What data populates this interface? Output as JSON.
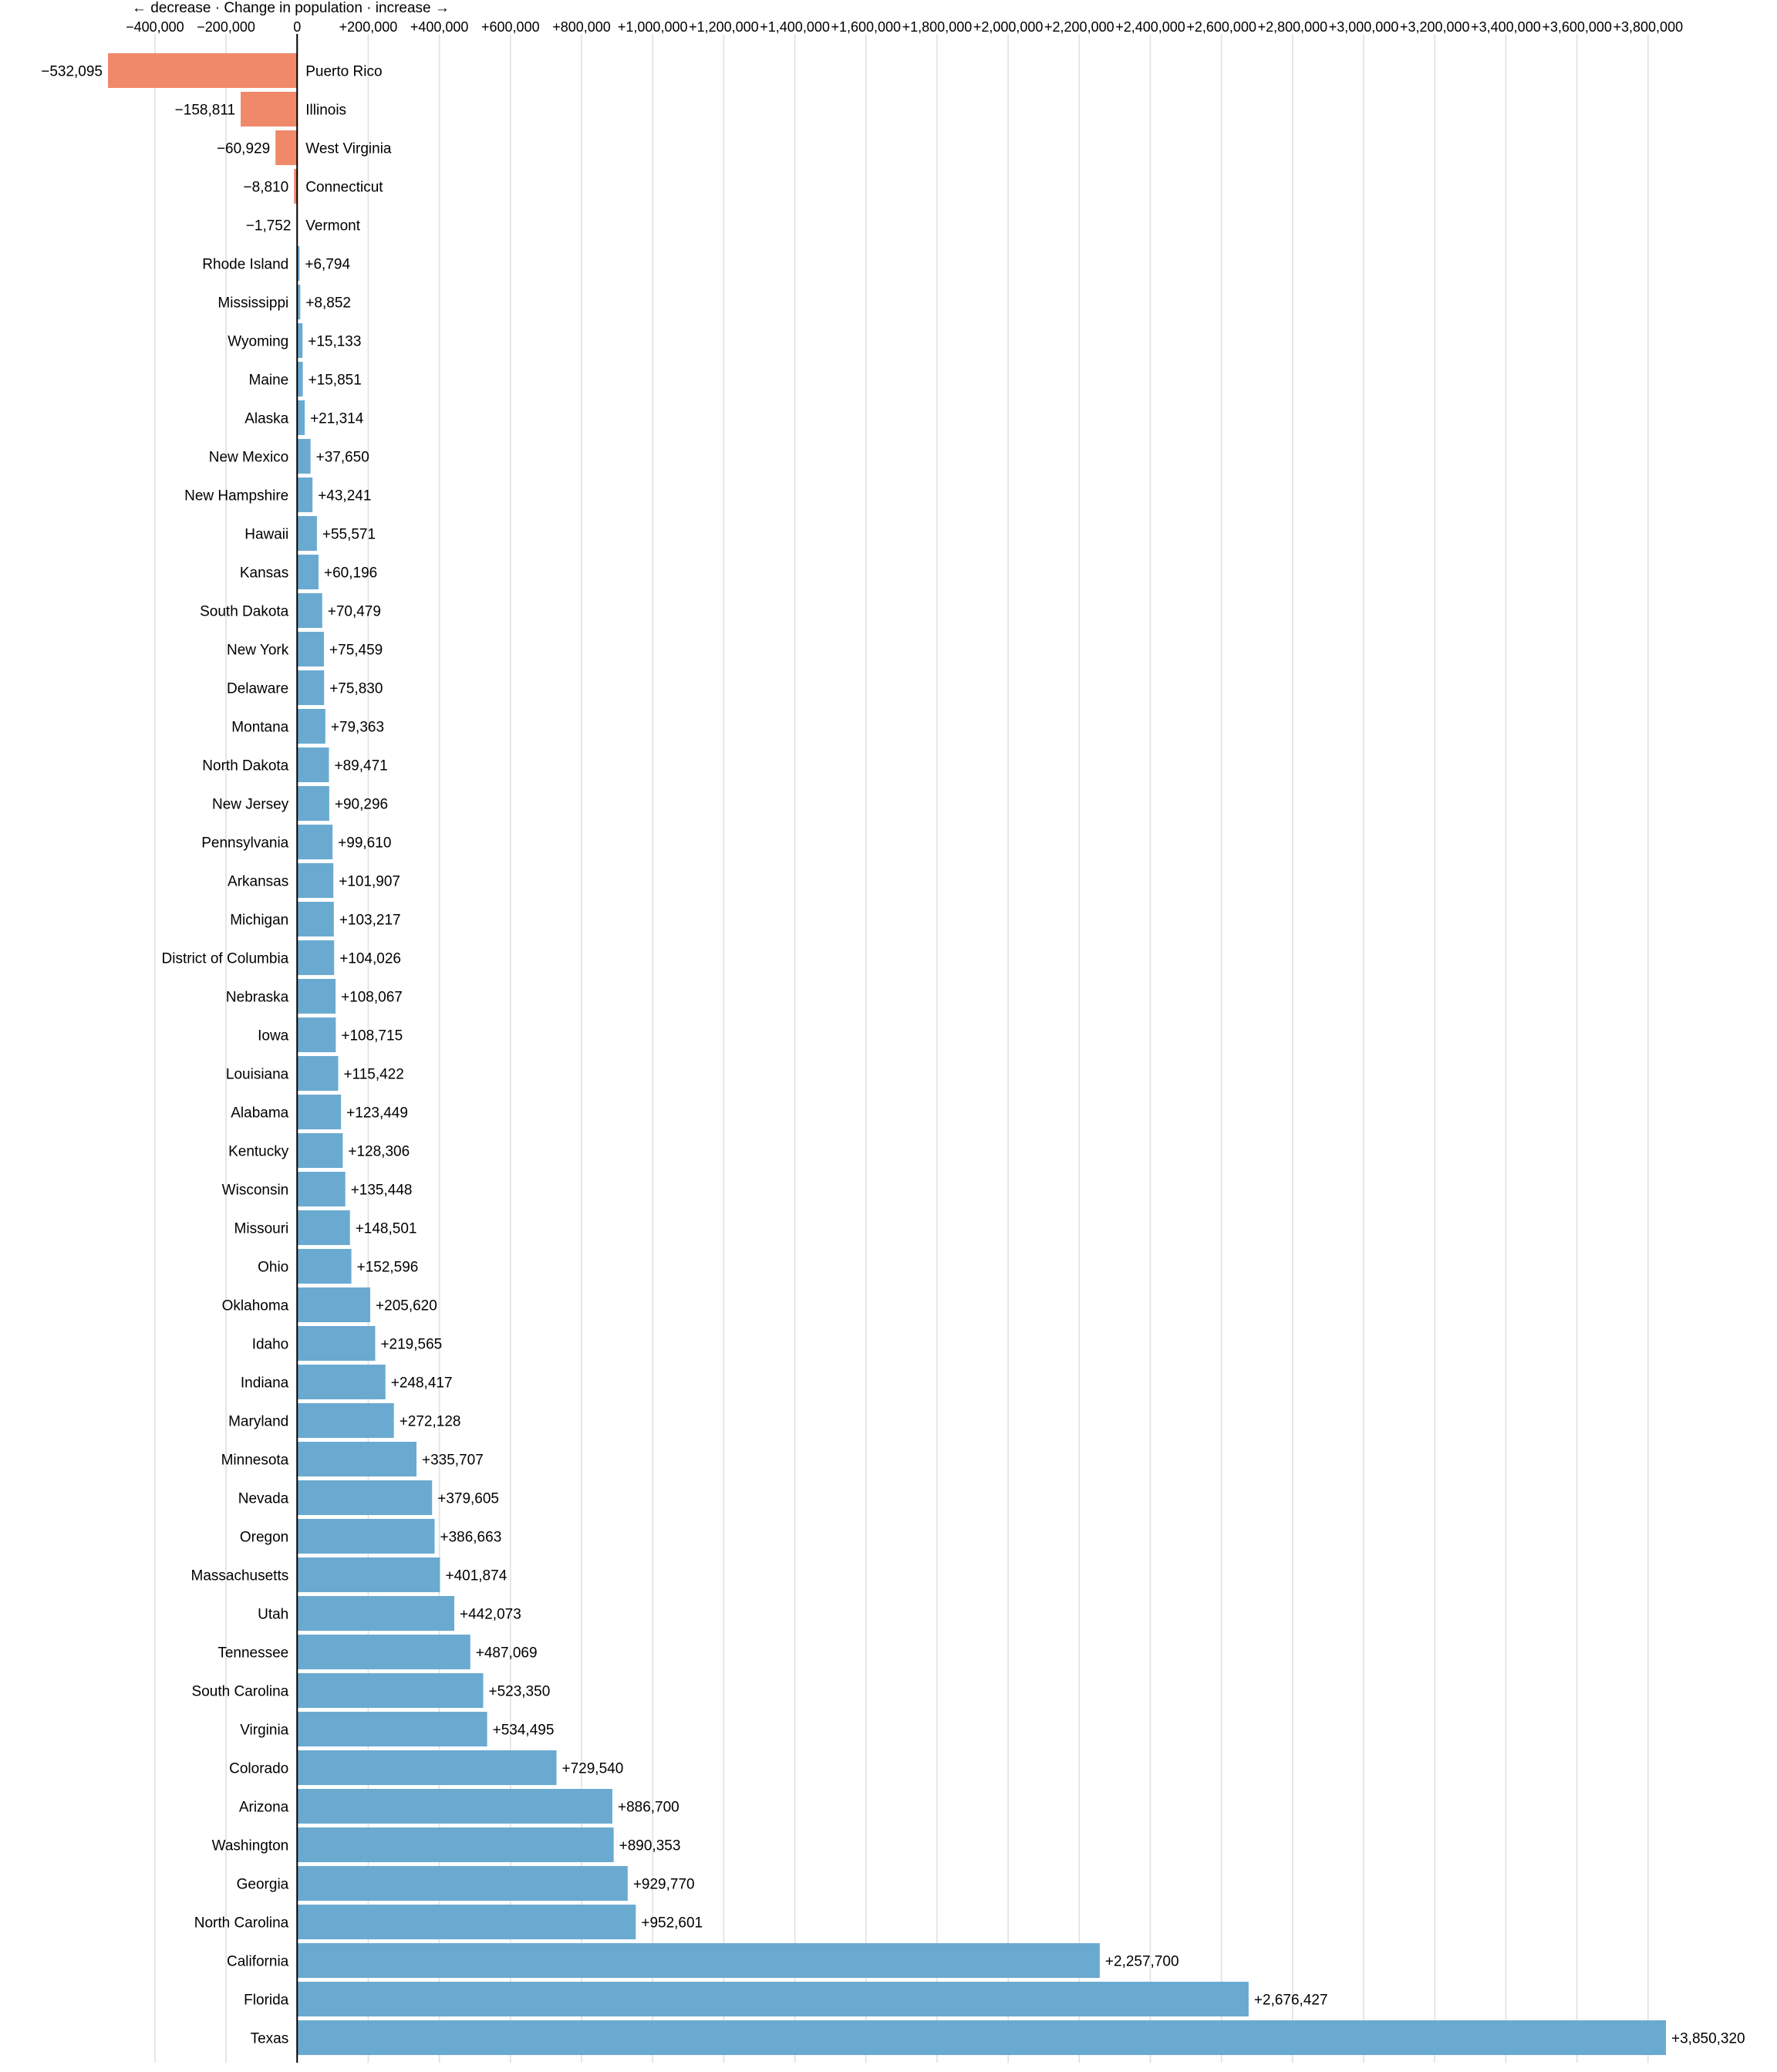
{
  "chart_data": {
    "type": "bar",
    "orientation": "horizontal",
    "xlabel": "← decrease · Change in population · increase →",
    "xlim": [
      -532095,
      3850320
    ],
    "grid": true,
    "colors": {
      "positive": "#6aaad1",
      "negative": "#f0896a"
    },
    "ticks": [
      {
        "value": -400000,
        "label": "−400,000"
      },
      {
        "value": -200000,
        "label": "−200,000"
      },
      {
        "value": 0,
        "label": "0"
      },
      {
        "value": 200000,
        "label": "+200,000"
      },
      {
        "value": 400000,
        "label": "+400,000"
      },
      {
        "value": 600000,
        "label": "+600,000"
      },
      {
        "value": 800000,
        "label": "+800,000"
      },
      {
        "value": 1000000,
        "label": "+1,000,000"
      },
      {
        "value": 1200000,
        "label": "+1,200,000"
      },
      {
        "value": 1400000,
        "label": "+1,400,000"
      },
      {
        "value": 1600000,
        "label": "+1,600,000"
      },
      {
        "value": 1800000,
        "label": "+1,800,000"
      },
      {
        "value": 2000000,
        "label": "+2,000,000"
      },
      {
        "value": 2200000,
        "label": "+2,200,000"
      },
      {
        "value": 2400000,
        "label": "+2,400,000"
      },
      {
        "value": 2600000,
        "label": "+2,600,000"
      },
      {
        "value": 2800000,
        "label": "+2,800,000"
      },
      {
        "value": 3000000,
        "label": "+3,000,000"
      },
      {
        "value": 3200000,
        "label": "+3,200,000"
      },
      {
        "value": 3400000,
        "label": "+3,400,000"
      },
      {
        "value": 3600000,
        "label": "+3,600,000"
      },
      {
        "value": 3800000,
        "label": "+3,800,000"
      }
    ],
    "categories": [
      "Puerto Rico",
      "Illinois",
      "West Virginia",
      "Connecticut",
      "Vermont",
      "Rhode Island",
      "Mississippi",
      "Wyoming",
      "Maine",
      "Alaska",
      "New Mexico",
      "New Hampshire",
      "Hawaii",
      "Kansas",
      "South Dakota",
      "New York",
      "Delaware",
      "Montana",
      "North Dakota",
      "New Jersey",
      "Pennsylvania",
      "Arkansas",
      "Michigan",
      "District of Columbia",
      "Nebraska",
      "Iowa",
      "Louisiana",
      "Alabama",
      "Kentucky",
      "Wisconsin",
      "Missouri",
      "Ohio",
      "Oklahoma",
      "Idaho",
      "Indiana",
      "Maryland",
      "Minnesota",
      "Nevada",
      "Oregon",
      "Massachusetts",
      "Utah",
      "Tennessee",
      "South Carolina",
      "Virginia",
      "Colorado",
      "Arizona",
      "Washington",
      "Georgia",
      "North Carolina",
      "California",
      "Florida",
      "Texas"
    ],
    "values": [
      -532095,
      -158811,
      -60929,
      -8810,
      -1752,
      6794,
      8852,
      15133,
      15851,
      21314,
      37650,
      43241,
      55571,
      60196,
      70479,
      75459,
      75830,
      79363,
      89471,
      90296,
      99610,
      101907,
      103217,
      104026,
      108067,
      108715,
      115422,
      123449,
      128306,
      135448,
      148501,
      152596,
      205620,
      219565,
      248417,
      272128,
      335707,
      379605,
      386663,
      401874,
      442073,
      487069,
      523350,
      534495,
      729540,
      886700,
      890353,
      929770,
      952601,
      2257700,
      2676427,
      3850320
    ],
    "value_labels": [
      "−532,095",
      "−158,811",
      "−60,929",
      "−8,810",
      "−1,752",
      "+6,794",
      "+8,852",
      "+15,133",
      "+15,851",
      "+21,314",
      "+37,650",
      "+43,241",
      "+55,571",
      "+60,196",
      "+70,479",
      "+75,459",
      "+75,830",
      "+79,363",
      "+89,471",
      "+90,296",
      "+99,610",
      "+101,907",
      "+103,217",
      "+104,026",
      "+108,067",
      "+108,715",
      "+115,422",
      "+123,449",
      "+128,306",
      "+135,448",
      "+148,501",
      "+152,596",
      "+205,620",
      "+219,565",
      "+248,417",
      "+272,128",
      "+335,707",
      "+379,605",
      "+386,663",
      "+401,874",
      "+442,073",
      "+487,069",
      "+523,350",
      "+534,495",
      "+729,540",
      "+886,700",
      "+890,353",
      "+929,770",
      "+952,601",
      "+2,257,700",
      "+2,676,427",
      "+3,850,320"
    ]
  }
}
